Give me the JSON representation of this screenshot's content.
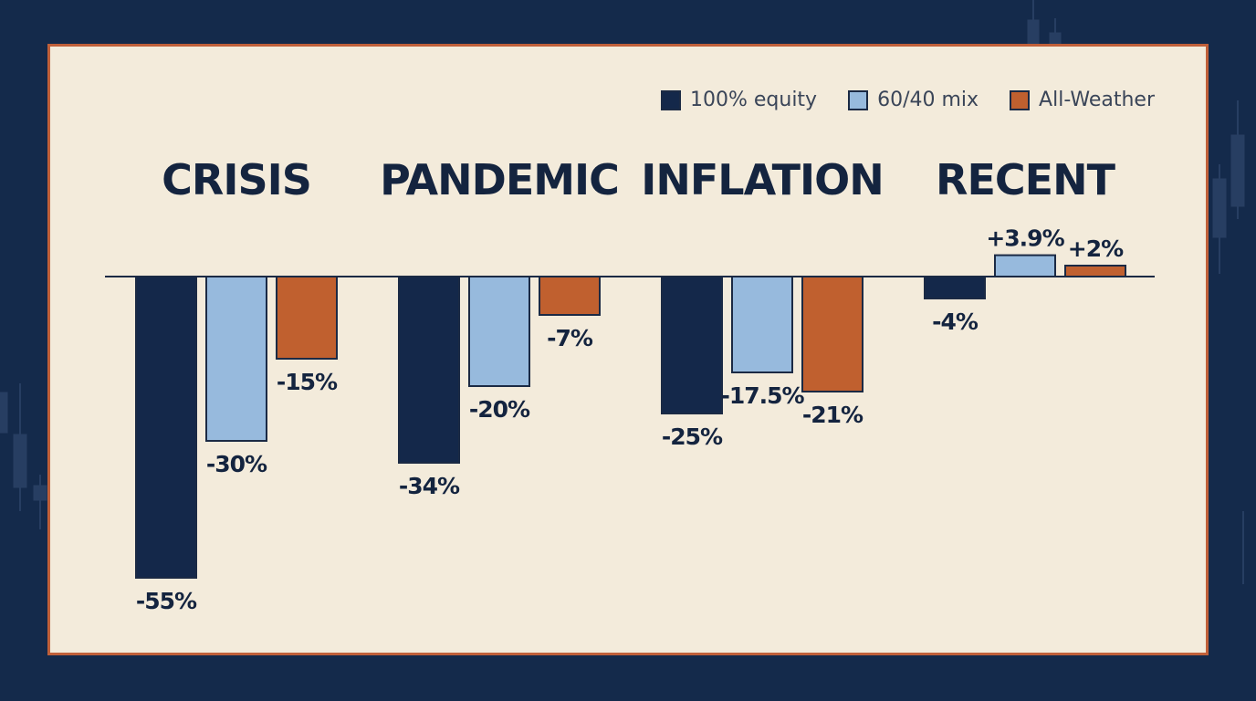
{
  "chart_data": {
    "type": "bar",
    "categories": [
      "CRISIS",
      "PANDEMIC",
      "INFLATION",
      "RECENT"
    ],
    "series": [
      {
        "name": "100% equity",
        "values": [
          -55,
          -34,
          -25,
          -4
        ],
        "labels": [
          "-55%",
          "-34%",
          "-25%",
          "-4%"
        ]
      },
      {
        "name": "60/40 mix",
        "values": [
          -30,
          -20,
          -17.5,
          3.9
        ],
        "labels": [
          "-30%",
          "-20%",
          "-17.5%",
          "+3.9%"
        ]
      },
      {
        "name": "All-Weather",
        "values": [
          -15,
          -7,
          -21,
          2
        ],
        "labels": [
          "-15%",
          "-7%",
          "-21%",
          "+2%"
        ]
      }
    ],
    "colors": [
      "#14284a",
      "#97badd",
      "#c0602f"
    ],
    "ylim": [
      -60,
      5
    ],
    "legend_position": "top-right",
    "grid": false
  }
}
